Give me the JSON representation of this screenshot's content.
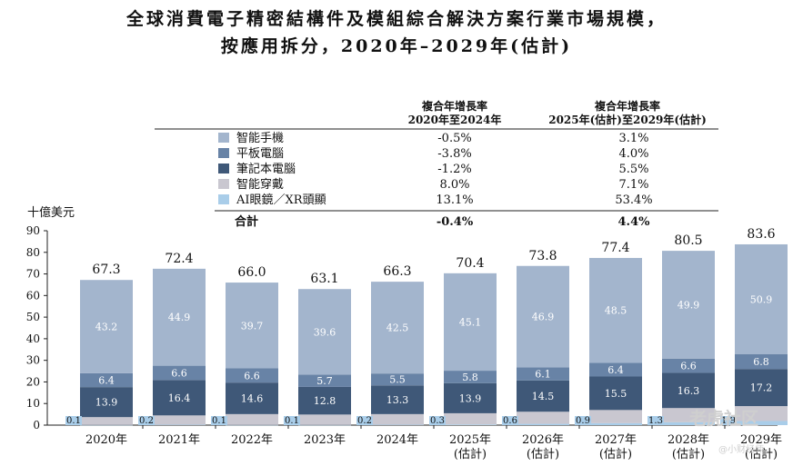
{
  "title_line1": "全球消費電子精密結構件及模組綜合解決方案行業市場規模，",
  "title_line2": "按應用拆分，2020年–2029年(估計)",
  "cagr_header": {
    "col1_line1": "複合年增長率",
    "col1_line2": "2020年至2024年",
    "col2_line1": "複合年增長率",
    "col2_line2": "2025年(估計)至2029年(估計)"
  },
  "legend_total_label": "合計",
  "cagr_total": {
    "c1": "-0.4%",
    "c2": "4.4%"
  },
  "watermark": {
    "text": "老虎社区",
    "handle": "@小财经师"
  },
  "colors": {
    "smartphone": "#a3b5cd",
    "tablet": "#6883a6",
    "notebook": "#3f5878",
    "wearable": "#c9c7d0",
    "ai_glasses": "#a9cde9"
  },
  "chart_data": {
    "type": "bar",
    "stacked": true,
    "ylabel": "十億美元",
    "ylim": [
      0,
      90
    ],
    "yticks": [
      0,
      10,
      20,
      30,
      40,
      50,
      60,
      70,
      80,
      90
    ],
    "grid": false,
    "categories": [
      [
        "2020年"
      ],
      [
        "2021年"
      ],
      [
        "2022年"
      ],
      [
        "2023年"
      ],
      [
        "2024年"
      ],
      [
        "2025年",
        "(估計)"
      ],
      [
        "2026年",
        "(估計)"
      ],
      [
        "2027年",
        "(估計)"
      ],
      [
        "2028年",
        "(估計)"
      ],
      [
        "2029年",
        "(估計)"
      ]
    ],
    "totals": [
      "67.3",
      "72.4",
      "66.0",
      "63.1",
      "66.3",
      "70.4",
      "73.8",
      "77.4",
      "80.5",
      "83.6"
    ],
    "series": [
      {
        "key": "ai_glasses",
        "name": "AI眼鏡／XR頭顯",
        "cagr_2020_2024": "13.1%",
        "cagr_2025_2029": "53.4%",
        "values": [
          0.1,
          0.2,
          0.1,
          0.1,
          0.2,
          0.3,
          0.6,
          0.9,
          1.3,
          1.9
        ]
      },
      {
        "key": "wearable",
        "name": "智能穿戴",
        "cagr_2020_2024": "8.0%",
        "cagr_2025_2029": "7.1%",
        "values": [
          3.6,
          4.3,
          5.0,
          4.8,
          4.9,
          5.2,
          5.6,
          6.1,
          6.6,
          6.9
        ]
      },
      {
        "key": "notebook",
        "name": "筆記本電腦",
        "cagr_2020_2024": "-1.2%",
        "cagr_2025_2029": "5.5%",
        "values": [
          13.9,
          16.4,
          14.6,
          12.8,
          13.3,
          13.9,
          14.5,
          15.5,
          16.3,
          17.2
        ]
      },
      {
        "key": "tablet",
        "name": "平板電腦",
        "cagr_2020_2024": "-3.8%",
        "cagr_2025_2029": "4.0%",
        "values": [
          6.4,
          6.6,
          6.6,
          5.7,
          5.5,
          5.8,
          6.1,
          6.4,
          6.6,
          6.8
        ]
      },
      {
        "key": "smartphone",
        "name": "智能手機",
        "cagr_2020_2024": "-0.5%",
        "cagr_2025_2029": "3.1%",
        "values": [
          43.2,
          44.9,
          39.7,
          39.6,
          42.5,
          45.1,
          46.9,
          48.5,
          49.9,
          50.9
        ]
      }
    ],
    "legend_order": [
      "smartphone",
      "tablet",
      "notebook",
      "wearable",
      "ai_glasses"
    ]
  }
}
